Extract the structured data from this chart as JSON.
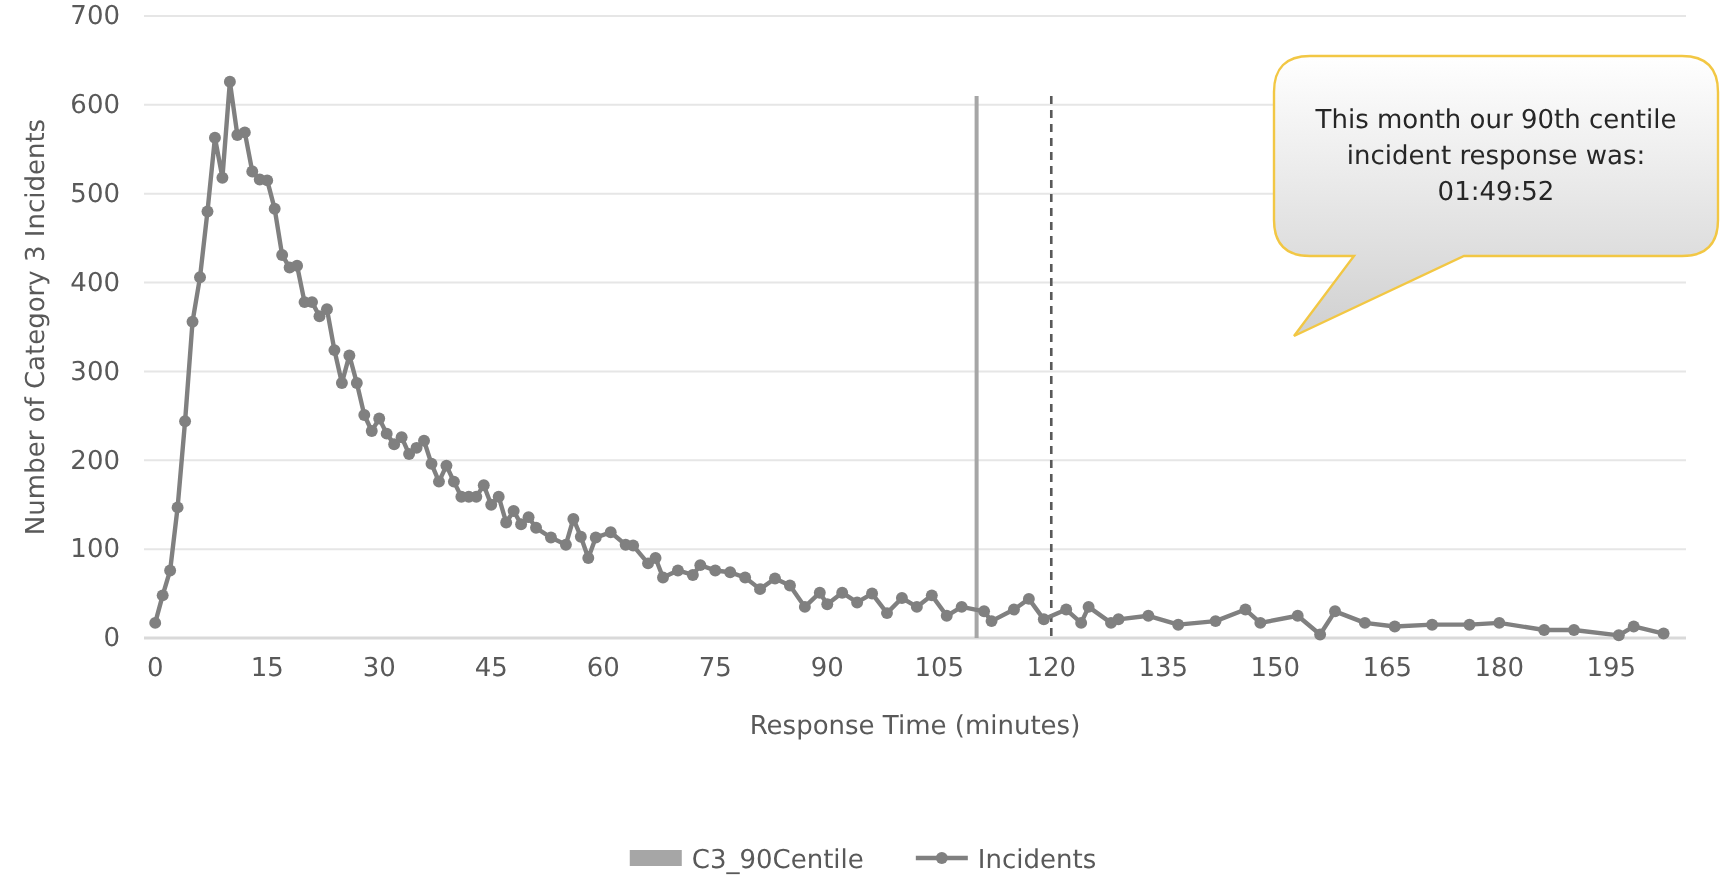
{
  "chart_data": {
    "type": "line",
    "xlabel": "Response Time (minutes)",
    "ylabel": "Number of Category 3 Incidents",
    "xlim": [
      -1.5,
      205
    ],
    "xticks": [
      0,
      15,
      30,
      45,
      60,
      75,
      90,
      105,
      120,
      135,
      150,
      165,
      180,
      195
    ],
    "ylim": [
      0,
      700
    ],
    "yticks": [
      0,
      100,
      200,
      300,
      400,
      500,
      600,
      700
    ],
    "grid": "y",
    "legend": "bottom",
    "marker": "circle",
    "line_style": "solid",
    "series": [
      {
        "name": "Incidents",
        "color": "#808080",
        "x": [
          0,
          1,
          2,
          3,
          4,
          5,
          6,
          7,
          8,
          9,
          10,
          11,
          12,
          13,
          14,
          15,
          16,
          17,
          18,
          19,
          20,
          21,
          22,
          23,
          24,
          25,
          26,
          27,
          28,
          29,
          30,
          31,
          32,
          33,
          34,
          35,
          36,
          37,
          38,
          39,
          40,
          41,
          42,
          43,
          44,
          45,
          46,
          47,
          48,
          49,
          50,
          51,
          53,
          55,
          56,
          57,
          58,
          59,
          61,
          63,
          64,
          66,
          67,
          68,
          70,
          72,
          73,
          75,
          77,
          79,
          81,
          83,
          85,
          87,
          89,
          90,
          92,
          94,
          96,
          98,
          100,
          102,
          104,
          106,
          108,
          111,
          112,
          115,
          117,
          119,
          122,
          124,
          125,
          128,
          129,
          133,
          137,
          142,
          146,
          148,
          153,
          156,
          158,
          162,
          166,
          171,
          176,
          180,
          186,
          190,
          196,
          198,
          202
        ],
        "values": [
          17,
          48,
          76,
          147,
          244,
          356,
          406,
          480,
          563,
          518,
          626,
          566,
          569,
          525,
          516,
          515,
          483,
          431,
          417,
          419,
          378,
          378,
          362,
          370,
          324,
          287,
          318,
          287,
          251,
          233,
          247,
          230,
          218,
          226,
          207,
          214,
          222,
          196,
          176,
          194,
          176,
          159,
          159,
          159,
          172,
          150,
          159,
          130,
          143,
          128,
          136,
          124,
          113,
          105,
          134,
          114,
          90,
          113,
          119,
          105,
          104,
          84,
          90,
          68,
          76,
          71,
          82,
          76,
          74,
          68,
          55,
          67,
          59,
          35,
          51,
          38,
          51,
          40,
          50,
          28,
          45,
          35,
          48,
          25,
          35,
          30,
          19,
          32,
          44,
          21,
          32,
          17,
          35,
          17,
          21,
          25,
          15,
          19,
          32,
          17,
          25,
          4,
          30,
          17,
          13,
          15,
          15,
          17,
          9,
          9,
          3,
          13,
          5
        ]
      }
    ],
    "ref_lines": [
      {
        "axis": "x",
        "value": 110,
        "label": "C3_90Centile",
        "color": "#a6a6a6",
        "line_style": "solid"
      },
      {
        "axis": "x",
        "value": 120,
        "color": "#595959",
        "line_style": "dashed"
      }
    ],
    "annotations": [
      "This month our 90th centile incident response was: 01:49:52"
    ]
  }
}
